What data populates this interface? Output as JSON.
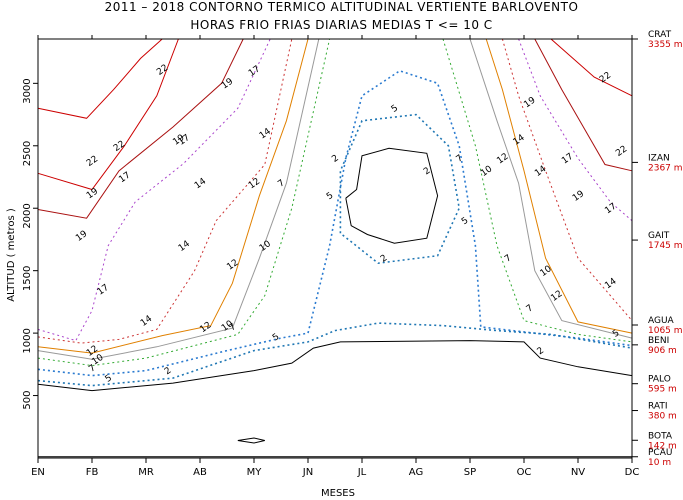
{
  "chart_data": {
    "type": "contour",
    "title": "2011 – 2018 CONTORNO TERMICO ALTITUDINAL VERTIENTE BARLOVENTO",
    "subtitle": "HORAS FRIO FRIAS DIARIAS MEDIAS T <= 10 C",
    "xlabel": "MESES",
    "ylabel": "ALTITUD ( metros )",
    "months": [
      "EN",
      "FB",
      "MR",
      "AB",
      "MY",
      "JN",
      "JL",
      "AG",
      "SP",
      "OC",
      "NV",
      "DC"
    ],
    "ylim": [
      0,
      3355
    ],
    "yticks": [
      500,
      1000,
      1500,
      2000,
      2500,
      3000
    ],
    "stations": [
      {
        "name": "CRAT",
        "alt": 3355,
        "label": "3355 m"
      },
      {
        "name": "IZAN",
        "alt": 2367,
        "label": "2367 m"
      },
      {
        "name": "GAIT",
        "alt": 1745,
        "label": "1745 m"
      },
      {
        "name": "AGUA",
        "alt": 1065,
        "label": "1065 m"
      },
      {
        "name": "BENI",
        "alt": 906,
        "label": "906 m"
      },
      {
        "name": "PALO",
        "alt": 595,
        "label": "595 m"
      },
      {
        "name": "RATI",
        "alt": 380,
        "label": "380 m"
      },
      {
        "name": "BOTA",
        "alt": 142,
        "label": "142 m"
      },
      {
        "name": "PCAU",
        "alt": 10,
        "label": "10 m"
      }
    ],
    "contour_levels": [
      0,
      2,
      5,
      7,
      10,
      12,
      14,
      17,
      19,
      22
    ],
    "level_colors": {
      "0": "#000000",
      "2": "#1f77b4",
      "5": "#2b7bd0",
      "7": "#33aa33",
      "10": "#999999",
      "12": "#e08000",
      "14": "#cc3333",
      "17": "#aa44cc",
      "19": "#aa1111",
      "22": "#cc0000"
    },
    "grid": true
  }
}
